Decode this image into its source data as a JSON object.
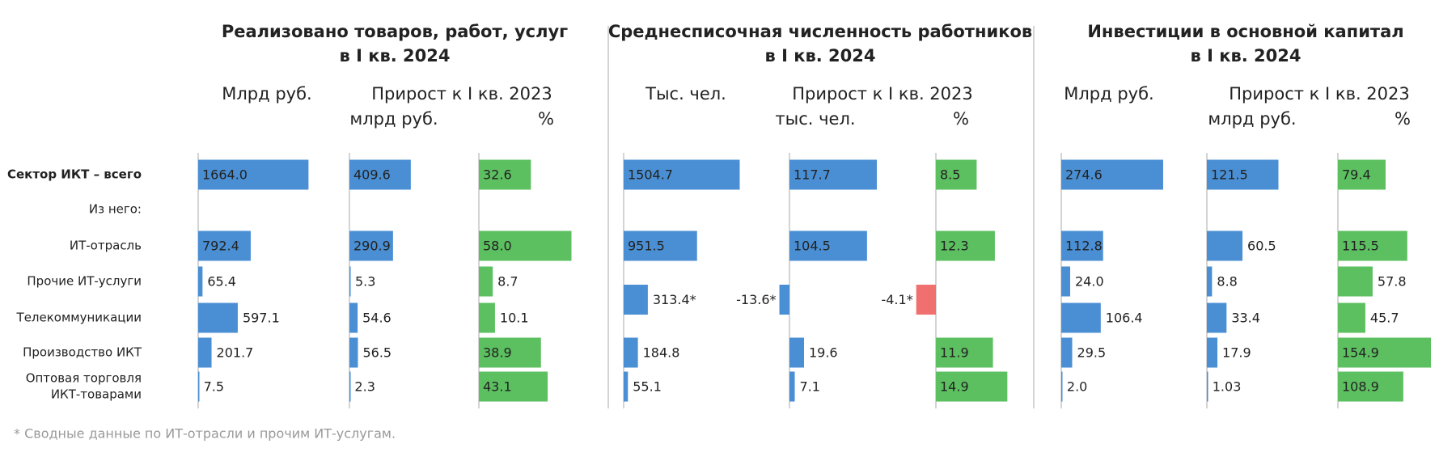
{
  "categories": [
    [
      "Сектор ИКТ – всего"
    ],
    [
      "ИТ-отрасль"
    ],
    [
      "Прочие ИТ-услуги"
    ],
    [
      "Телекоммуникации"
    ],
    [
      "Производство ИКТ"
    ],
    [
      "Оптовая торговля",
      "ИКТ-товарами"
    ]
  ],
  "subgroup_label": "Из него:",
  "footnote": "* Сводные данные по ИТ-отрасли и прочим ИТ-услугам.",
  "chart_data": [
    {
      "type": "bar",
      "title": [
        "Реализовано товаров, работ, услуг",
        "в I кв. 2024"
      ],
      "subheader": "Прирост к I кв. 2023",
      "columns": [
        {
          "header": "Млрд руб.",
          "xlim": [
            0,
            1830
          ],
          "color": "#4a8fd4",
          "values": [
            1664.0,
            792.4,
            65.4,
            597.1,
            201.7,
            7.5
          ],
          "value_labels": [
            "1664.0",
            "792.4",
            "65.4",
            "597.1",
            "201.7",
            "7.5"
          ]
        },
        {
          "header": "млрд руб.",
          "xlim": [
            0,
            810
          ],
          "color": "#4a8fd4",
          "values": [
            409.6,
            290.9,
            5.3,
            54.6,
            56.5,
            2.3
          ],
          "value_labels": [
            "409.6",
            "290.9",
            "5.3",
            "54.6",
            "56.5",
            "2.3"
          ]
        },
        {
          "header": "%",
          "xlim": [
            0,
            76
          ],
          "color": "#5cbf60",
          "values": [
            32.6,
            58.0,
            8.7,
            10.1,
            38.9,
            43.1
          ],
          "value_labels": [
            "32.6",
            "58.0",
            "8.7",
            "10.1",
            "38.9",
            "43.1"
          ]
        }
      ]
    },
    {
      "type": "bar",
      "title": [
        "Среднесписочная численность работников",
        "в I кв. 2024"
      ],
      "subheader": "Прирост к I кв. 2023",
      "columns": [
        {
          "header": "Тыс. чел.",
          "xlim": [
            0,
            1573
          ],
          "color": "#4a8fd4",
          "values": [
            1504.7,
            951.5,
            313.4,
            null,
            184.8,
            55.1
          ],
          "value_labels": [
            "1504.7",
            "951.5",
            "313.4*",
            null,
            "184.8",
            "55.1"
          ]
        },
        {
          "header": "тыс. чел.",
          "xlim": [
            0,
            163.5
          ],
          "color": "#4a8fd4",
          "values": [
            117.7,
            104.5,
            -13.6,
            null,
            19.6,
            7.1
          ],
          "value_labels": [
            "117.7",
            "104.5",
            "-13.6*",
            null,
            "19.6",
            "7.1"
          ]
        },
        {
          "header": "%",
          "xlim": [
            0,
            25.3
          ],
          "color": "#5cbf60",
          "negative_color": "#f07070",
          "values": [
            8.5,
            12.3,
            -4.1,
            null,
            11.9,
            14.9
          ],
          "value_labels": [
            "8.5",
            "12.3",
            "-4.1*",
            null,
            "11.9",
            "14.9"
          ]
        }
      ]
    },
    {
      "type": "bar",
      "title": [
        "Инвестиции в основной капитал",
        "в I кв. 2024"
      ],
      "subheader": "Прирост к I кв. 2023",
      "columns": [
        {
          "header": "Млрд руб.",
          "xlim": [
            0,
            327
          ],
          "color": "#4a8fd4",
          "values": [
            274.6,
            112.8,
            24.0,
            106.4,
            29.5,
            2.0
          ],
          "value_labels": [
            "274.6",
            "112.8",
            "24.0",
            "106.4",
            "29.5",
            "2.0"
          ]
        },
        {
          "header": "млрд руб.",
          "xlim": [
            0,
            206
          ],
          "color": "#4a8fd4",
          "values": [
            121.5,
            60.5,
            8.8,
            33.4,
            17.9,
            1.03
          ],
          "value_labels": [
            "121.5",
            "60.5",
            "8.8",
            "33.4",
            "17.9",
            "1.03"
          ]
        },
        {
          "header": "%",
          "xlim": [
            0,
            202
          ],
          "color": "#5cbf60",
          "values": [
            79.4,
            115.5,
            57.8,
            45.7,
            154.9,
            108.9
          ],
          "value_labels": [
            "79.4",
            "115.5",
            "57.8",
            "45.7",
            "154.9",
            "108.9"
          ]
        }
      ]
    }
  ]
}
